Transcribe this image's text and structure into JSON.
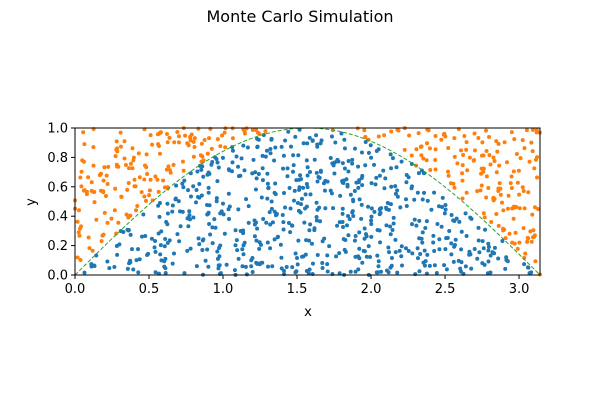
{
  "chart_data": {
    "type": "scatter",
    "title": "Monte Carlo Simulation",
    "xlabel": "x",
    "ylabel": "y",
    "xlim": [
      0,
      3.1416
    ],
    "ylim": [
      0,
      1
    ],
    "xticks": [
      0,
      0.5,
      1,
      1.5,
      2,
      2.5,
      3
    ],
    "xtick_labels": [
      "0.0",
      "0.5",
      "1.0",
      "1.5",
      "2.0",
      "2.5",
      "3.0"
    ],
    "yticks": [
      0,
      0.2,
      0.4,
      0.6,
      0.8,
      1.0
    ],
    "ytick_labels": [
      "0.0",
      "0.2",
      "0.4",
      "0.6",
      "0.8",
      "1.0"
    ],
    "grid": false,
    "legend": "none",
    "curve": {
      "function": "sin(x)",
      "style": "dashed",
      "color": "#2ca02c"
    },
    "colors": {
      "below_curve": "#1f77b4",
      "above_curve": "#ff7f0e"
    },
    "sample_count": 1000,
    "marker_size": 2
  }
}
